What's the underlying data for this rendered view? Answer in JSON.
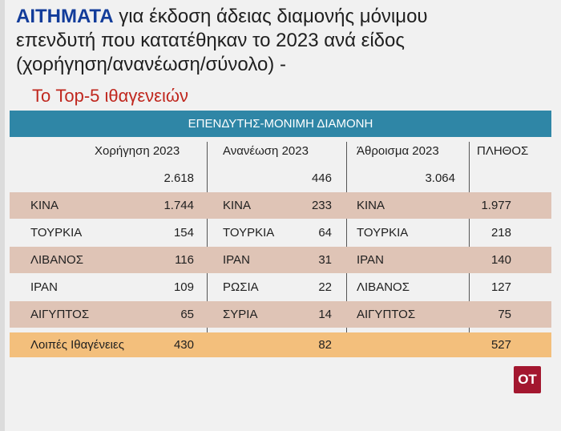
{
  "headline": {
    "keyword": "ΑΙΤΗΜΑΤΑ",
    "line1_rest": "για έκδοση άδειας διαμονής μόνιμου",
    "line2": "επενδυτή που κατατέθηκαν το 2023 ανά είδος",
    "line3": "(χορήγηση/ανανέωση/σύνολο) -"
  },
  "subtitle": "Το Top-5 ιθαγενειών",
  "banner": "ΕΠΕΝΔΥΤΗΣ-ΜΟΝΙΜΗ ΔΙΑΜΟΝΗ",
  "columns": {
    "grant": "Χορήγηση 2023",
    "renewal": "Ανανέωση 2023",
    "sum": "Άθροισμα 2023",
    "count": "ΠΛΗΘΟΣ"
  },
  "totals": {
    "grant": "2.618",
    "renewal": "446",
    "sum": "3.064"
  },
  "rows": [
    {
      "grant_country": "ΚΙΝΑ",
      "grant_value": "1.744",
      "renewal_country": "ΚΙΝΑ",
      "renewal_value": "233",
      "sum_country": "ΚΙΝΑ",
      "sum_value": "1.977"
    },
    {
      "grant_country": "ΤΟΥΡΚΙΑ",
      "grant_value": "154",
      "renewal_country": "ΤΟΥΡΚΙΑ",
      "renewal_value": "64",
      "sum_country": "ΤΟΥΡΚΙΑ",
      "sum_value": "218"
    },
    {
      "grant_country": "ΛΙΒΑΝΟΣ",
      "grant_value": "116",
      "renewal_country": "ΙΡΑΝ",
      "renewal_value": "31",
      "sum_country": "ΙΡΑΝ",
      "sum_value": "140"
    },
    {
      "grant_country": "ΙΡΑΝ",
      "grant_value": "109",
      "renewal_country": "ΡΩΣΙΑ",
      "renewal_value": "22",
      "sum_country": "ΛΙΒΑΝΟΣ",
      "sum_value": "127"
    },
    {
      "grant_country": "ΑΙΓΥΠΤΟΣ",
      "grant_value": "65",
      "renewal_country": "ΣΥΡΙΑ",
      "renewal_value": "14",
      "sum_country": "ΑΙΓΥΠΤΟΣ",
      "sum_value": "75"
    }
  ],
  "others": {
    "label": "Λοιπές Ιθαγένειες",
    "grant": "430",
    "renewal": "82",
    "sum": "527"
  },
  "logo": "OT"
}
